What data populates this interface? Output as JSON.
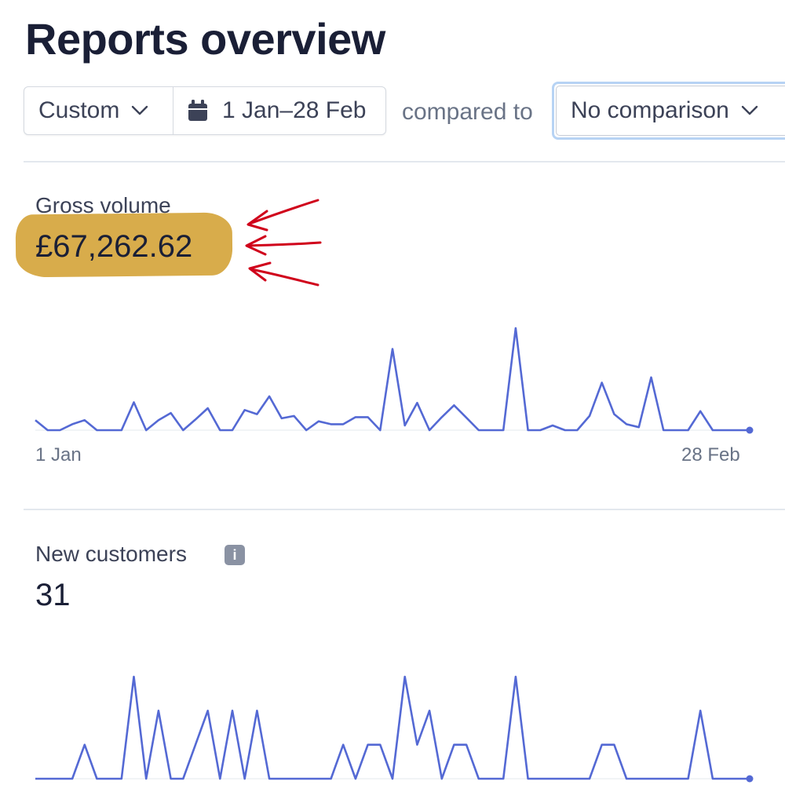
{
  "header": {
    "title": "Reports overview"
  },
  "filters": {
    "preset": "Custom",
    "date_range": "1 Jan–28 Feb",
    "compared_to_label": "compared to",
    "comparison": "No comparison"
  },
  "gross_volume": {
    "label": "Gross volume",
    "value": "£67,262.62",
    "highlight_color": "#d8ac4b",
    "annotation_color": "#d0021b",
    "x_start_label": "1 Jan",
    "x_end_label": "28 Feb"
  },
  "new_customers": {
    "label": "New customers",
    "value": "31",
    "info_icon": "info-icon"
  },
  "chart_data": [
    {
      "type": "line",
      "name": "Gross volume",
      "line_color": "#5469d4",
      "xlabels": [
        "1 Jan",
        "28 Feb"
      ],
      "values": [
        17,
        0,
        0,
        10,
        17,
        0,
        0,
        0,
        47,
        0,
        17,
        29,
        0,
        18,
        37,
        0,
        0,
        34,
        27,
        57,
        20,
        24,
        0,
        15,
        10,
        10,
        22,
        22,
        0,
        137,
        8,
        46,
        0,
        22,
        42,
        21,
        0,
        0,
        0,
        172,
        0,
        0,
        8,
        0,
        0,
        24,
        80,
        27,
        10,
        5,
        89,
        0,
        0,
        0,
        32,
        0,
        0,
        0,
        0
      ],
      "ylim": [
        0,
        172
      ]
    },
    {
      "type": "line",
      "name": "New customers",
      "line_color": "#5469d4",
      "values": [
        0,
        0,
        0,
        0,
        1,
        0,
        0,
        0,
        3,
        0,
        2,
        0,
        0,
        1,
        2,
        0,
        2,
        0,
        2,
        0,
        0,
        0,
        0,
        0,
        0,
        1,
        0,
        1,
        1,
        0,
        3,
        1,
        2,
        0,
        1,
        1,
        0,
        0,
        0,
        3,
        0,
        0,
        0,
        0,
        0,
        0,
        1,
        1,
        0,
        0,
        0,
        0,
        0,
        0,
        2,
        0,
        0,
        0,
        0
      ],
      "ylim": [
        0,
        3
      ]
    }
  ]
}
